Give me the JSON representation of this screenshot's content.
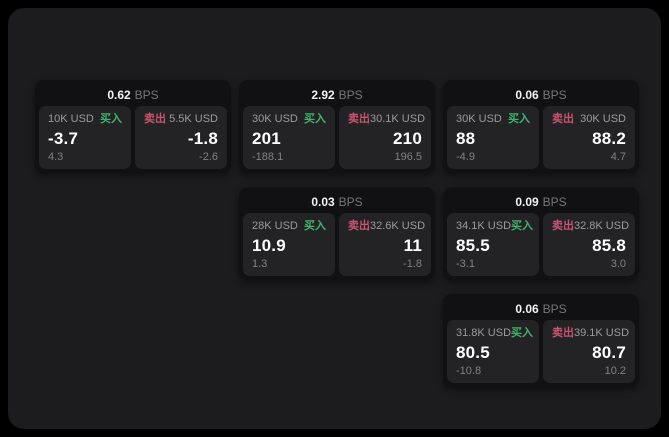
{
  "theme": {
    "colors": {
      "window-bg": "#1c1c1e",
      "card-bg": "#111113",
      "panel-bg": "#232326",
      "muted": "#77777a",
      "label": "#9b9b9e",
      "delta": "#818184",
      "buy": "#42b46a",
      "sell": "#c9536e"
    }
  },
  "labels": {
    "bps": "BPS",
    "buy": "买入",
    "sell": "卖出"
  },
  "cards": [
    {
      "bps": "0.62",
      "buy": {
        "amount": "10K USD",
        "price": "-3.7",
        "delta": "4.3"
      },
      "sell": {
        "amount": "5.5K USD",
        "price": "-1.8",
        "delta": "-2.6"
      }
    },
    {
      "bps": "2.92",
      "buy": {
        "amount": "30K USD",
        "price": "201",
        "delta": "-188.1"
      },
      "sell": {
        "amount": "30.1K USD",
        "price": "210",
        "delta": "196.5"
      }
    },
    {
      "bps": "0.06",
      "buy": {
        "amount": "30K USD",
        "price": "88",
        "delta": "-4.9"
      },
      "sell": {
        "amount": "30K USD",
        "price": "88.2",
        "delta": "4.7"
      }
    },
    {
      "bps": "0.03",
      "buy": {
        "amount": "28K USD",
        "price": "10.9",
        "delta": "1.3"
      },
      "sell": {
        "amount": "32.6K USD",
        "price": "11",
        "delta": "-1.8"
      }
    },
    {
      "bps": "0.09",
      "buy": {
        "amount": "34.1K USD",
        "price": "85.5",
        "delta": "-3.1"
      },
      "sell": {
        "amount": "32.8K USD",
        "price": "85.8",
        "delta": "3.0"
      }
    },
    {
      "bps": "0.06",
      "buy": {
        "amount": "31.8K USD",
        "price": "80.5",
        "delta": "-10.8"
      },
      "sell": {
        "amount": "39.1K USD",
        "price": "80.7",
        "delta": "10.2"
      }
    }
  ]
}
